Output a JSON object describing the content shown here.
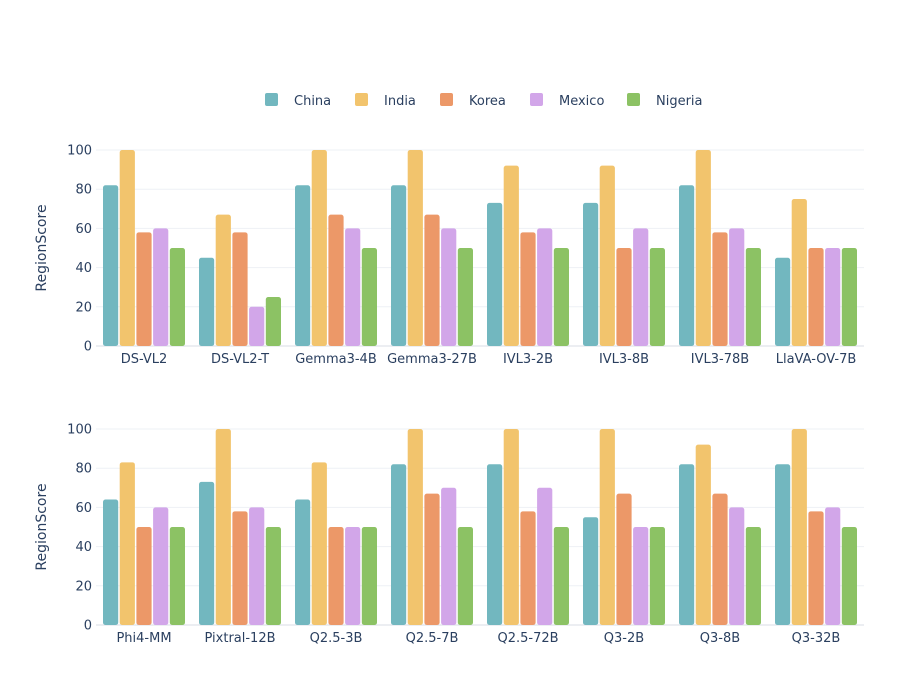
{
  "chart_data": {
    "type": "bar",
    "legend": {
      "placement": "top-center",
      "series": [
        {
          "name": "China",
          "color": "#72b7bf"
        },
        {
          "name": "India",
          "color": "#f2c46d"
        },
        {
          "name": "Korea",
          "color": "#ec9868"
        },
        {
          "name": "Mexico",
          "color": "#d2a6e9"
        },
        {
          "name": "Nigeria",
          "color": "#8cc264"
        }
      ]
    },
    "panels": [
      {
        "ylabel": "RegionScore",
        "ylim": [
          0,
          100
        ],
        "yticks": [
          0,
          20,
          40,
          60,
          80,
          100
        ],
        "grid": true,
        "categories": [
          "DS-VL2",
          "DS-VL2-T",
          "Gemma3-4B",
          "Gemma3-27B",
          "IVL3-2B",
          "IVL3-8B",
          "IVL3-78B",
          "LlaVA-OV-7B"
        ],
        "series": [
          {
            "name": "China",
            "values": [
              82,
              45,
              82,
              82,
              73,
              73,
              82,
              45
            ]
          },
          {
            "name": "India",
            "values": [
              100,
              67,
              100,
              100,
              92,
              92,
              100,
              75
            ]
          },
          {
            "name": "Korea",
            "values": [
              58,
              58,
              67,
              67,
              58,
              50,
              58,
              50
            ]
          },
          {
            "name": "Mexico",
            "values": [
              60,
              20,
              60,
              60,
              60,
              60,
              60,
              50
            ]
          },
          {
            "name": "Nigeria",
            "values": [
              50,
              25,
              50,
              50,
              50,
              50,
              50,
              50
            ]
          }
        ]
      },
      {
        "ylabel": "RegionScore",
        "ylim": [
          0,
          100
        ],
        "yticks": [
          0,
          20,
          40,
          60,
          80,
          100
        ],
        "grid": true,
        "categories": [
          "Phi4-MM",
          "Pixtral-12B",
          "Q2.5-3B",
          "Q2.5-7B",
          "Q2.5-72B",
          "Q3-2B",
          "Q3-8B",
          "Q3-32B"
        ],
        "series": [
          {
            "name": "China",
            "values": [
              64,
              73,
              64,
              82,
              82,
              55,
              82,
              82
            ]
          },
          {
            "name": "India",
            "values": [
              83,
              100,
              83,
              100,
              100,
              100,
              92,
              100
            ]
          },
          {
            "name": "Korea",
            "values": [
              50,
              58,
              50,
              67,
              58,
              67,
              67,
              58
            ]
          },
          {
            "name": "Mexico",
            "values": [
              60,
              60,
              50,
              70,
              70,
              50,
              60,
              60
            ]
          },
          {
            "name": "Nigeria",
            "values": [
              50,
              50,
              50,
              50,
              50,
              50,
              50,
              50
            ]
          }
        ]
      }
    ]
  }
}
